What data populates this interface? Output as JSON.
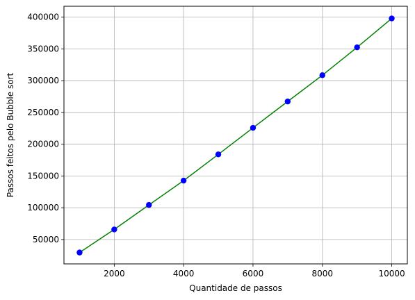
{
  "chart_data": {
    "type": "scatter",
    "title": "",
    "xlabel": "Quantidade de passos",
    "ylabel": "Passos feitos pelo Bubble sort",
    "xlim": [
      550,
      10450
    ],
    "ylim": [
      11600,
      417200
    ],
    "x_ticks": [
      2000,
      4000,
      6000,
      8000,
      10000
    ],
    "y_ticks": [
      50000,
      100000,
      150000,
      200000,
      250000,
      300000,
      350000,
      400000
    ],
    "x_tick_labels": [
      "2000",
      "4000",
      "6000",
      "8000",
      "10000"
    ],
    "y_tick_labels": [
      "50000",
      "100000",
      "150000",
      "200000",
      "250000",
      "300000",
      "350000",
      "400000"
    ],
    "grid": true,
    "series": [
      {
        "name": "scatter",
        "style": "points",
        "color": "#0000ff",
        "x": [
          1000,
          2000,
          3000,
          4000,
          5000,
          6000,
          7000,
          8000,
          9000,
          10000
        ],
        "y": [
          29500,
          65800,
          104400,
          142700,
          184000,
          225800,
          267300,
          308600,
          352500,
          398000
        ]
      },
      {
        "name": "line",
        "style": "line",
        "color": "#008000",
        "x": [
          1000,
          2000,
          3000,
          4000,
          5000,
          6000,
          7000,
          8000,
          9000,
          10000
        ],
        "y": [
          29500,
          65800,
          104400,
          142700,
          184000,
          225800,
          267300,
          308600,
          352500,
          398000
        ]
      }
    ]
  }
}
